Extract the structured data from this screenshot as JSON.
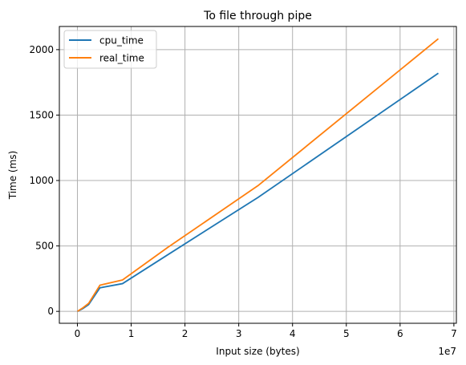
{
  "chart_data": {
    "type": "line",
    "title": "To file through pipe",
    "xlabel": "Input size (bytes)",
    "ylabel": "Time (ms)",
    "x_offset_label": "1e7",
    "x_scale": 10000000,
    "xlim": [
      -3355443,
      70464307
    ],
    "ylim": [
      -91,
      2177
    ],
    "x_ticks": [
      0,
      10000000,
      20000000,
      30000000,
      40000000,
      50000000,
      60000000,
      70000000
    ],
    "x_tick_labels": [
      "0",
      "1",
      "2",
      "3",
      "4",
      "5",
      "6",
      "7"
    ],
    "y_ticks": [
      0,
      500,
      1000,
      1500,
      2000
    ],
    "y_tick_labels": [
      "0",
      "500",
      "1000",
      "1500",
      "2000"
    ],
    "grid": true,
    "legend_position": "upper-left",
    "x": [
      0,
      1048576,
      2097152,
      4194304,
      8388608,
      16777216,
      33554432,
      67108864
    ],
    "series": [
      {
        "name": "cpu_time",
        "color": "#1f77b4",
        "values": [
          0,
          22,
          52,
          180,
          212,
          432,
          870,
          1820
        ]
      },
      {
        "name": "real_time",
        "color": "#ff7f0e",
        "values": [
          0,
          28,
          62,
          200,
          240,
          488,
          960,
          2083
        ]
      }
    ]
  }
}
